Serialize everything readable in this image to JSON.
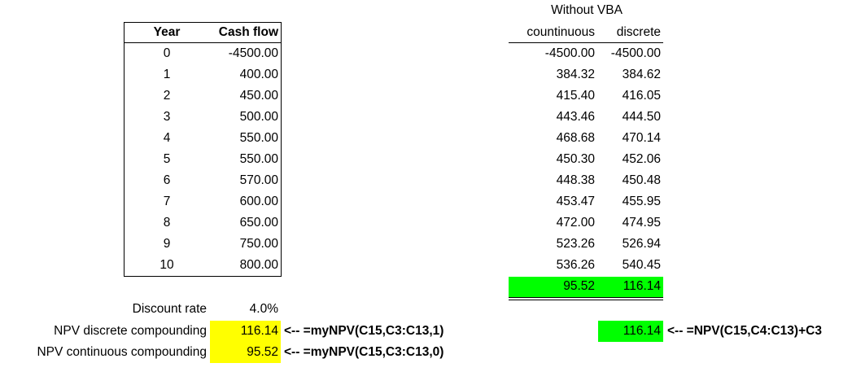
{
  "left_table": {
    "header": [
      "Year",
      "Cash flow"
    ],
    "rows": [
      [
        "0",
        "-4500.00"
      ],
      [
        "1",
        "400.00"
      ],
      [
        "2",
        "450.00"
      ],
      [
        "3",
        "500.00"
      ],
      [
        "4",
        "550.00"
      ],
      [
        "5",
        "550.00"
      ],
      [
        "6",
        "570.00"
      ],
      [
        "7",
        "600.00"
      ],
      [
        "8",
        "650.00"
      ],
      [
        "9",
        "750.00"
      ],
      [
        "10",
        "800.00"
      ]
    ]
  },
  "right_table": {
    "title": "Without VBA",
    "header": [
      "countinuous",
      "discrete"
    ],
    "rows": [
      [
        "-4500.00",
        "-4500.00"
      ],
      [
        "384.32",
        "384.62"
      ],
      [
        "415.40",
        "416.05"
      ],
      [
        "443.46",
        "444.50"
      ],
      [
        "468.68",
        "470.14"
      ],
      [
        "450.30",
        "452.06"
      ],
      [
        "448.38",
        "450.48"
      ],
      [
        "453.47",
        "455.95"
      ],
      [
        "472.00",
        "474.95"
      ],
      [
        "523.26",
        "526.94"
      ],
      [
        "536.26",
        "540.45"
      ]
    ],
    "totals": [
      "95.52",
      "116.14"
    ],
    "npv": "116.14",
    "npv_formula": "<--  =NPV(C15,C4:C13)+C3"
  },
  "inputs": {
    "discount_rate": {
      "label": "Discount rate",
      "value": "4.0%"
    },
    "npv_discrete": {
      "label": "NPV discrete compounding",
      "value": "116.14",
      "formula": "<--  =myNPV(C15,C3:C13,1)"
    },
    "npv_continuous": {
      "label": "NPV continuous compounding",
      "value": "95.52",
      "formula": "<--  =myNPV(C15,C3:C13,0)"
    }
  }
}
